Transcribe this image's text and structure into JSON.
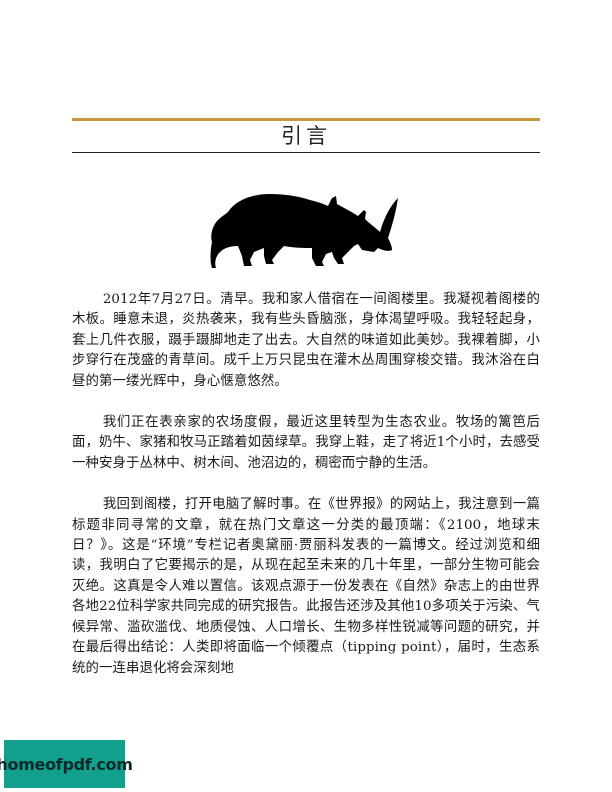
{
  "chapter": {
    "title": "引言"
  },
  "figure": {
    "icon": "rhino-silhouette-icon",
    "color": "#000000"
  },
  "paragraphs": [
    "2012年7月27日。清早。我和家人借宿在一间阁楼里。我凝视着阁楼的木板。睡意未退，炎热袭来，我有些头昏脑涨，身体渴望呼吸。我轻轻起身，套上几件衣服，蹑手蹑脚地走了出去。大自然的味道如此美妙。我裸着脚，小步穿行在茂盛的青草间。成千上万只昆虫在灌木丛周围穿梭交错。我沐浴在白昼的第一缕光辉中，身心惬意悠然。",
    "我们正在表亲家的农场度假，最近这里转型为生态农业。牧场的篱笆后面，奶牛、家猪和牧马正踏着如茵绿草。我穿上鞋，走了将近1个小时，去感受一种安身于丛林中、树木间、池沼边的，稠密而宁静的生活。",
    "我回到阁楼，打开电脑了解时事。在《世界报》的网站上，我注意到一篇标题非同寻常的文章，就在热门文章这一分类的最顶端：《2100，地球末日？》。这是“环境”专栏记者奥黛丽·贾丽科发表的一篇博文。经过浏览和细读，我明白了它要揭示的是，从现在起至未来的几十年里，一部分生物可能会灭绝。这真是令人难以置信。该观点源于一份发表在《自然》杂志上的由世界各地22位科学家共同完成的研究报告。此报告还涉及其他10多项关于污染、气候异常、滥砍滥伐、地质侵蚀、人口增长、生物多样性锐减等问题的研究，并在最后得出结论：人类即将面临一个倾覆点（tipping point），届时，生态系统的一连串退化将会深刻地"
  ],
  "watermark": {
    "text": "homeofpdf.com",
    "color": "#12a08e"
  }
}
